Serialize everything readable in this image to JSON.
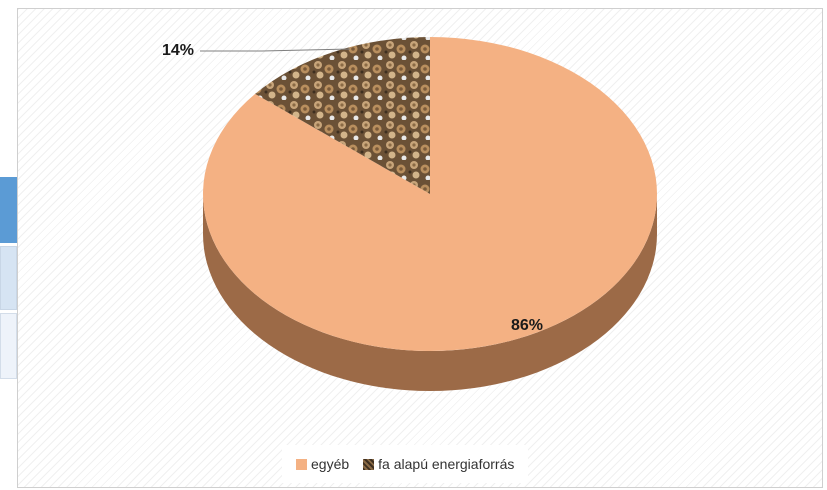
{
  "chart_data": {
    "type": "pie",
    "categories": [
      "egyéb",
      "fa alapú energiaforrás"
    ],
    "values": [
      86,
      14
    ],
    "data_labels": [
      "86%",
      "14%"
    ],
    "legend_position": "bottom",
    "colors": [
      "#f4b183",
      "#5a4632"
    ],
    "style": "3d"
  }
}
